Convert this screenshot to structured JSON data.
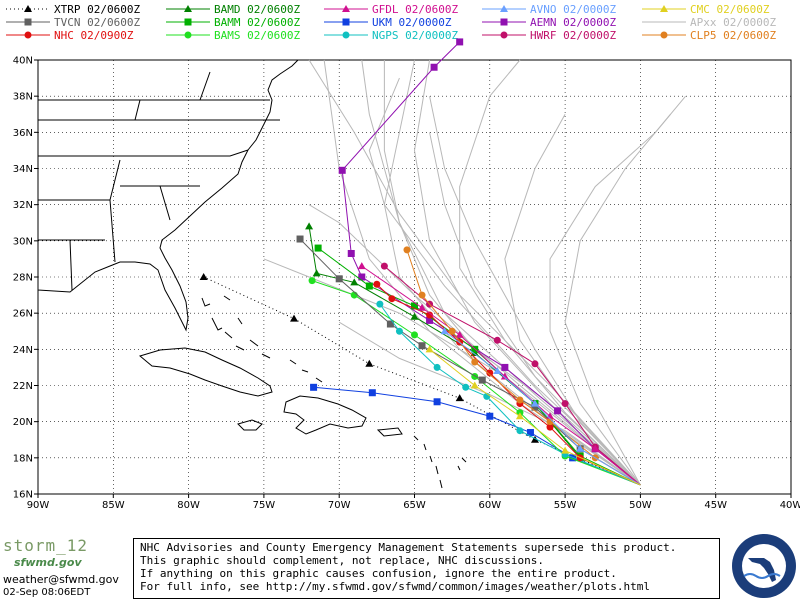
{
  "legend": [
    {
      "label": "XTRP  02/0600Z",
      "color": "#000000",
      "marker": "triangle",
      "dotted": true
    },
    {
      "label": "BAMD 02/0600Z",
      "color": "#008000",
      "marker": "triangle"
    },
    {
      "label": "GFDL  02/0600Z",
      "color": "#d01090",
      "marker": "triangle"
    },
    {
      "label": "AVNO 02/0000Z",
      "color": "#6aa0ff",
      "marker": "triangle"
    },
    {
      "label": "CMC 02/0600Z",
      "color": "#e0d020",
      "marker": "triangle"
    },
    {
      "label": "TVCN  02/0600Z",
      "color": "#606060",
      "marker": "square"
    },
    {
      "label": "BAMM 02/0600Z",
      "color": "#00b000",
      "marker": "square"
    },
    {
      "label": "UKM   02/0000Z",
      "color": "#1040e0",
      "marker": "square"
    },
    {
      "label": "AEMN 02/0000Z",
      "color": "#9010b0",
      "marker": "square"
    },
    {
      "label": "APxx 02/0000Z",
      "color": "#b8b8b8",
      "marker": "none"
    },
    {
      "label": "NHC   02/0900Z",
      "color": "#e01010",
      "marker": "circle"
    },
    {
      "label": "BAMS 02/0600Z",
      "color": "#20e020",
      "marker": "circle"
    },
    {
      "label": "NGPS 02/0000Z",
      "color": "#10c0c0",
      "marker": "circle"
    },
    {
      "label": "HWRF 02/0000Z",
      "color": "#c0106a",
      "marker": "circle"
    },
    {
      "label": "CLP5 02/0600Z",
      "color": "#e08020",
      "marker": "circle"
    }
  ],
  "axes": {
    "lon": [
      -90,
      -85,
      -80,
      -75,
      -70,
      -65,
      -60,
      -55,
      -50,
      -45,
      -40
    ],
    "lon_labels": [
      "90W",
      "85W",
      "80W",
      "75W",
      "70W",
      "65W",
      "60W",
      "55W",
      "50W",
      "45W",
      "40W"
    ],
    "lat": [
      16,
      18,
      20,
      22,
      24,
      26,
      28,
      30,
      32,
      34,
      36,
      38,
      40
    ],
    "lat_labels": [
      "16N",
      "18N",
      "20N",
      "22N",
      "24N",
      "26N",
      "28N",
      "30N",
      "32N",
      "34N",
      "36N",
      "38N",
      "40N"
    ]
  },
  "tracks": [
    {
      "model": "XTRP",
      "points": [
        [
          -50,
          16.5
        ],
        [
          -57,
          19
        ],
        [
          -62,
          21.3
        ],
        [
          -68,
          23.2
        ],
        [
          -73,
          25.7
        ],
        [
          -79,
          28
        ]
      ]
    },
    {
      "model": "UKM",
      "points": [
        [
          -50,
          16.5
        ],
        [
          -54.5,
          18
        ],
        [
          -57.3,
          19.4
        ],
        [
          -60,
          20.3
        ],
        [
          -63.5,
          21.1
        ],
        [
          -67.8,
          21.6
        ],
        [
          -71.7,
          21.9
        ]
      ]
    },
    {
      "model": "AEMN",
      "points": [
        [
          -50,
          16.5
        ],
        [
          -53,
          18.5
        ],
        [
          -55.5,
          20.6
        ],
        [
          -59,
          23
        ],
        [
          -64,
          25.6
        ],
        [
          -68.5,
          28
        ],
        [
          -69.2,
          29.3
        ],
        [
          -69.8,
          33.9
        ],
        [
          -63.7,
          39.6
        ],
        [
          -62,
          41
        ]
      ]
    },
    {
      "model": "HWRF",
      "points": [
        [
          -50,
          16.5
        ],
        [
          -53,
          18.6
        ],
        [
          -55,
          21
        ],
        [
          -57,
          23.2
        ],
        [
          -59.5,
          24.5
        ],
        [
          -64,
          26.5
        ],
        [
          -67,
          28.6
        ]
      ]
    },
    {
      "model": "BAMD",
      "points": [
        [
          -50,
          16.5
        ],
        [
          -54,
          18
        ],
        [
          -57,
          21
        ],
        [
          -61,
          23.8
        ],
        [
          -65,
          25.8
        ],
        [
          -69,
          27.7
        ],
        [
          -71.5,
          28.2
        ],
        [
          -72,
          30.8
        ]
      ]
    },
    {
      "model": "BAMM",
      "points": [
        [
          -50,
          16.5
        ],
        [
          -54,
          18.1
        ],
        [
          -57,
          21
        ],
        [
          -61,
          24
        ],
        [
          -65,
          26.4
        ],
        [
          -68,
          27.5
        ],
        [
          -71.4,
          29.6
        ]
      ]
    },
    {
      "model": "BAMS",
      "points": [
        [
          -50,
          16.5
        ],
        [
          -55,
          18.1
        ],
        [
          -58,
          20.5
        ],
        [
          -61,
          22.5
        ],
        [
          -65,
          24.8
        ],
        [
          -69,
          27
        ],
        [
          -71.8,
          27.8
        ]
      ]
    },
    {
      "model": "TVCN",
      "points": [
        [
          -50,
          16.5
        ],
        [
          -54,
          18.5
        ],
        [
          -57,
          20.8
        ],
        [
          -60.5,
          22.3
        ],
        [
          -64.5,
          24.2
        ],
        [
          -66.6,
          25.4
        ],
        [
          -70,
          27.9
        ],
        [
          -72.6,
          30.1
        ]
      ]
    },
    {
      "model": "NGPS",
      "points": [
        [
          -50,
          16.5
        ],
        [
          -55,
          18.2
        ],
        [
          -58,
          19.5
        ],
        [
          -60.2,
          21.4
        ],
        [
          -61.6,
          21.9
        ],
        [
          -63.5,
          23
        ],
        [
          -66,
          25
        ],
        [
          -67.3,
          26.5
        ]
      ]
    },
    {
      "model": "NHC",
      "points": [
        [
          -50,
          16.5
        ],
        [
          -54,
          18
        ],
        [
          -56,
          19.7
        ],
        [
          -58,
          21
        ],
        [
          -60,
          22.7
        ],
        [
          -62,
          24.4
        ],
        [
          -64,
          25.9
        ],
        [
          -66.5,
          26.8
        ],
        [
          -67.5,
          27.6
        ]
      ]
    },
    {
      "model": "GFDL",
      "points": [
        [
          -50,
          16.5
        ],
        [
          -53,
          18.5
        ],
        [
          -56,
          20.3
        ],
        [
          -59,
          22.5
        ],
        [
          -62,
          24.8
        ],
        [
          -64.5,
          26.3
        ],
        [
          -68.5,
          28.6
        ]
      ]
    },
    {
      "model": "CLP5",
      "points": [
        [
          -50,
          16.5
        ],
        [
          -53,
          18
        ],
        [
          -56,
          20
        ],
        [
          -58,
          21.2
        ],
        [
          -61,
          23.3
        ],
        [
          -62.5,
          25
        ],
        [
          -64.5,
          27
        ],
        [
          -65.5,
          29.5
        ]
      ]
    },
    {
      "model": "AVNO",
      "points": [
        [
          -50,
          16.5
        ],
        [
          -54,
          18.5
        ],
        [
          -57,
          21
        ],
        [
          -59.5,
          22.8
        ],
        [
          -63,
          25
        ]
      ]
    },
    {
      "model": "CMC",
      "points": [
        [
          -50,
          16.5
        ],
        [
          -55,
          18.4
        ],
        [
          -58,
          20.3
        ],
        [
          -61,
          22
        ],
        [
          -64,
          24
        ]
      ]
    }
  ],
  "footer": {
    "storm": "storm_12",
    "site": "sfwmd.gov",
    "email": "weather@sfwmd.gov",
    "date": "02-Sep 08:06EDT"
  },
  "disclaimer": [
    "NHC Advisories and County Emergency Management Statements supersede this product.",
    "This graphic should complement, not replace, NHC discussions.",
    "If anything on this graphic causes confusion, ignore the entire product.",
    "For full info, see  http://my.sfwmd.gov/sfwmd/common/images/weather/plots.html"
  ],
  "seal_text": "SOUTH FLORIDA WATER MANAGEMENT DISTRICT"
}
